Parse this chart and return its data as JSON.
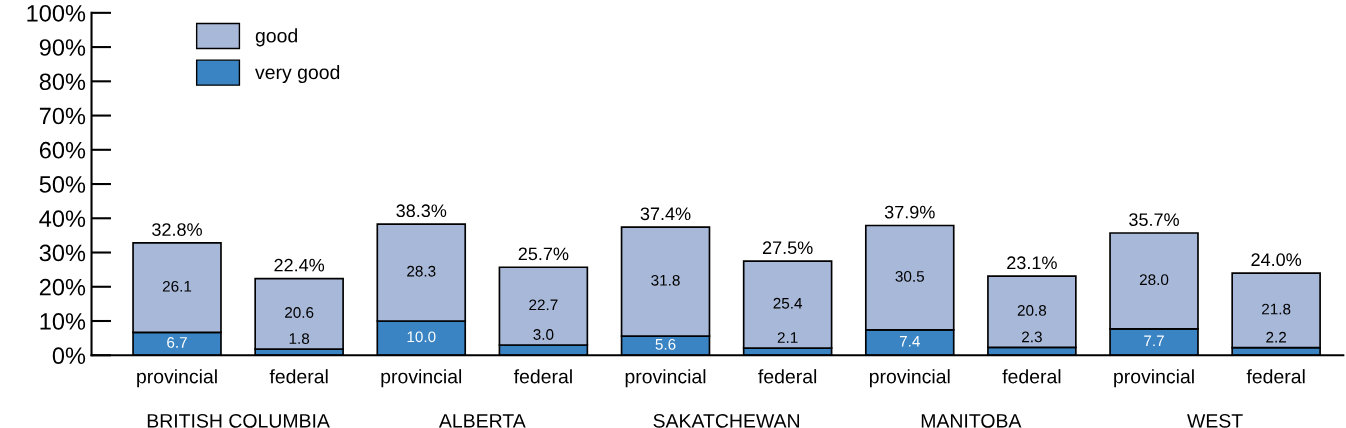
{
  "chart_data": {
    "type": "bar",
    "stacked": true,
    "categories": [
      "provincial",
      "federal",
      "provincial",
      "federal",
      "provincial",
      "federal",
      "provincial",
      "federal",
      "provincial",
      "federal"
    ],
    "series": [
      {
        "name": "very good",
        "color": "#3a84c4",
        "values": [
          6.7,
          1.8,
          10.0,
          3.0,
          5.6,
          2.1,
          7.4,
          2.3,
          7.7,
          2.2
        ],
        "value_labels": [
          "6.7",
          "1.8",
          "10.0",
          "3.0",
          "5.6",
          "2.1",
          "7.4",
          "2.3",
          "7.7",
          "2.2"
        ]
      },
      {
        "name": "good",
        "color": "#a8b8d8",
        "values": [
          26.1,
          20.6,
          28.3,
          22.7,
          31.8,
          25.4,
          30.5,
          20.8,
          28.0,
          21.8
        ],
        "value_labels": [
          "26.1",
          "20.6",
          "28.3",
          "22.7",
          "31.8",
          "25.4",
          "30.5",
          "20.8",
          "28.0",
          "21.8"
        ]
      }
    ],
    "totals": [
      "32.8%",
      "22.4%",
      "38.3%",
      "25.7%",
      "37.4%",
      "27.5%",
      "37.9%",
      "23.1%",
      "35.7%",
      "24.0%"
    ],
    "ylim": [
      0,
      100
    ],
    "yticks": [
      {
        "value": 0,
        "label": "0%"
      },
      {
        "value": 10,
        "label": "10%"
      },
      {
        "value": 20,
        "label": "20%"
      },
      {
        "value": 30,
        "label": "30%"
      },
      {
        "value": 40,
        "label": "40%"
      },
      {
        "value": 50,
        "label": "50%"
      },
      {
        "value": 60,
        "label": "60%"
      },
      {
        "value": 70,
        "label": "70%"
      },
      {
        "value": 80,
        "label": "80%"
      },
      {
        "value": 90,
        "label": "90%"
      },
      {
        "value": 100,
        "label": "100%"
      }
    ],
    "legend": "top left",
    "grid": false,
    "annotations": [
      "BRITISH COLUMBIA",
      "ALBERTA",
      "SAKATCHEWAN",
      "MANITOBA",
      "WEST"
    ]
  }
}
